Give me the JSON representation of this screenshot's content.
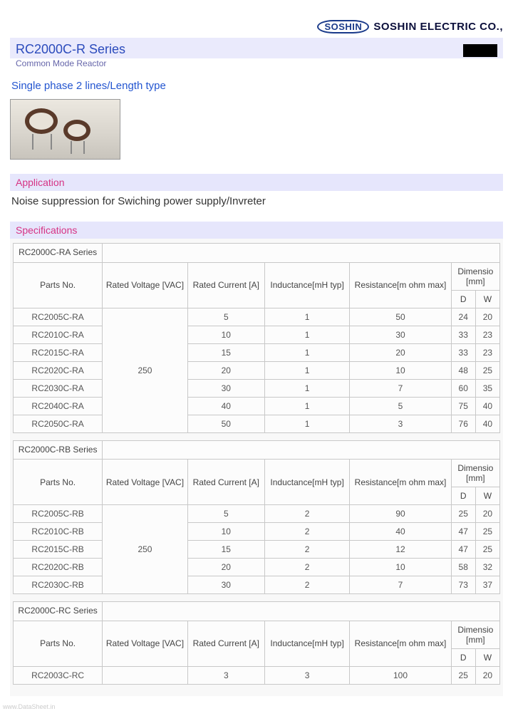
{
  "logo": {
    "badge": "SOSHIN",
    "text": "SOSHIN ELECTRIC CO., "
  },
  "title": "RC2000C-R Series",
  "subtitle": "Common Mode Reactor",
  "phase": "Single phase 2 lines/Length type",
  "section_application": "Application",
  "application_text": "Noise suppression for Swiching power supply/Invreter",
  "section_spec": "Specifications",
  "headers": {
    "parts": "Parts No.",
    "voltage": "Rated Voltage [VAC]",
    "current": "Rated Current [A]",
    "inductance": "Inductance[mH typ]",
    "resistance": "Resistance[m ohm max]",
    "dimension": "Dimensio [mm]",
    "d": "D",
    "w": "W"
  },
  "tables": [
    {
      "series_name": "RC2000C-RA Series",
      "voltage": "250",
      "rows": [
        {
          "part": "RC2005C-RA",
          "cur": "5",
          "ind": "1",
          "res": "50",
          "d": "24",
          "w": "20"
        },
        {
          "part": "RC2010C-RA",
          "cur": "10",
          "ind": "1",
          "res": "30",
          "d": "33",
          "w": "23"
        },
        {
          "part": "RC2015C-RA",
          "cur": "15",
          "ind": "1",
          "res": "20",
          "d": "33",
          "w": "23"
        },
        {
          "part": "RC2020C-RA",
          "cur": "20",
          "ind": "1",
          "res": "10",
          "d": "48",
          "w": "25"
        },
        {
          "part": "RC2030C-RA",
          "cur": "30",
          "ind": "1",
          "res": "7",
          "d": "60",
          "w": "35"
        },
        {
          "part": "RC2040C-RA",
          "cur": "40",
          "ind": "1",
          "res": "5",
          "d": "75",
          "w": "40"
        },
        {
          "part": "RC2050C-RA",
          "cur": "50",
          "ind": "1",
          "res": "3",
          "d": "76",
          "w": "40"
        }
      ]
    },
    {
      "series_name": "RC2000C-RB Series",
      "voltage": "250",
      "rows": [
        {
          "part": "RC2005C-RB",
          "cur": "5",
          "ind": "2",
          "res": "90",
          "d": "25",
          "w": "20"
        },
        {
          "part": "RC2010C-RB",
          "cur": "10",
          "ind": "2",
          "res": "40",
          "d": "47",
          "w": "25"
        },
        {
          "part": "RC2015C-RB",
          "cur": "15",
          "ind": "2",
          "res": "12",
          "d": "47",
          "w": "25"
        },
        {
          "part": "RC2020C-RB",
          "cur": "20",
          "ind": "2",
          "res": "10",
          "d": "58",
          "w": "32"
        },
        {
          "part": "RC2030C-RB",
          "cur": "30",
          "ind": "2",
          "res": "7",
          "d": "73",
          "w": "37"
        }
      ]
    },
    {
      "series_name": "RC2000C-RC Series",
      "voltage": "",
      "rows": [
        {
          "part": "RC2003C-RC",
          "cur": "3",
          "ind": "3",
          "res": "100",
          "d": "25",
          "w": "20"
        }
      ]
    }
  ],
  "watermark": "www.DataSheet.in",
  "style": {
    "title_color": "#2b4bbc",
    "section_bg": "#e6e6fc",
    "section_color": "#d63384",
    "title_bg": "#eaeafc",
    "border_color": "#c8c8c8",
    "text_color": "#555555",
    "page_bg": "#ffffff"
  }
}
